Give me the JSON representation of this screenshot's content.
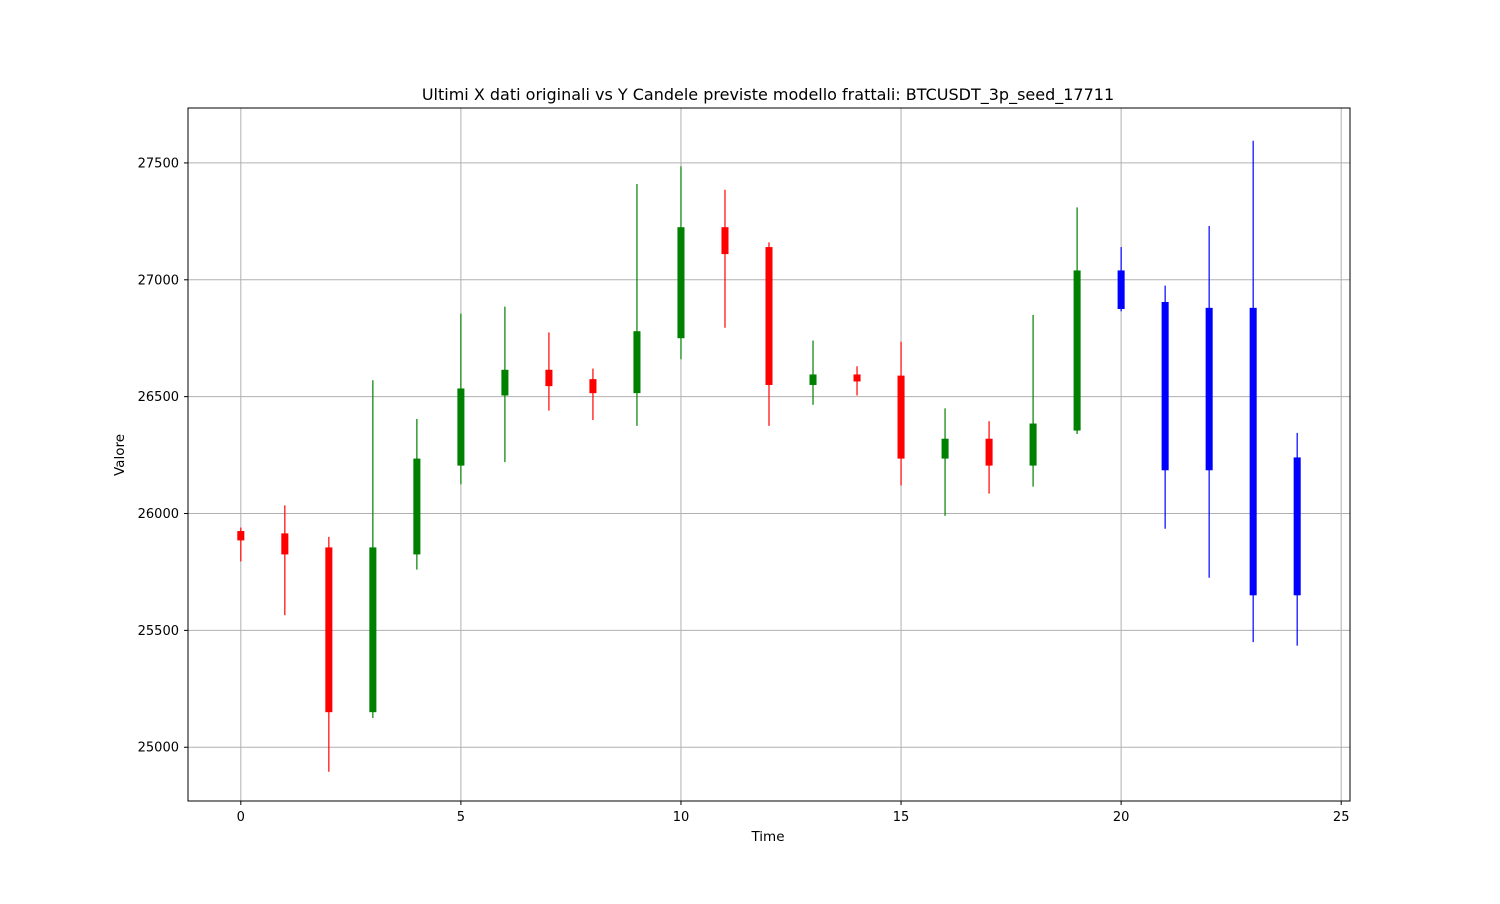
{
  "chart_data": {
    "type": "candlestick",
    "title": "Ultimi X dati originali vs Y Candele previste modello frattali: BTCUSDT_3p_seed_17711",
    "xlabel": "Time",
    "ylabel": "Valore",
    "xlim": [
      -1.2,
      25.2
    ],
    "ylim": [
      24770,
      27735
    ],
    "xticks": [
      0,
      5,
      10,
      15,
      20,
      25
    ],
    "yticks": [
      25000,
      25500,
      26000,
      26500,
      27000,
      27500
    ],
    "grid": true,
    "colors": {
      "up": "#008000",
      "down": "#ff0000",
      "predicted": "#0000ff",
      "grid": "#b0b0b0"
    },
    "candles": [
      {
        "t": 0,
        "open": 25925,
        "high": 25940,
        "low": 25795,
        "close": 25885,
        "kind": "down"
      },
      {
        "t": 1,
        "open": 25915,
        "high": 26035,
        "low": 25565,
        "close": 25825,
        "kind": "down"
      },
      {
        "t": 2,
        "open": 25855,
        "high": 25900,
        "low": 24895,
        "close": 25150,
        "kind": "down"
      },
      {
        "t": 3,
        "open": 25150,
        "high": 26570,
        "low": 25125,
        "close": 25855,
        "kind": "up"
      },
      {
        "t": 4,
        "open": 25825,
        "high": 26405,
        "low": 25760,
        "close": 26235,
        "kind": "up"
      },
      {
        "t": 5,
        "open": 26205,
        "high": 26855,
        "low": 26125,
        "close": 26535,
        "kind": "up"
      },
      {
        "t": 6,
        "open": 26505,
        "high": 26885,
        "low": 26220,
        "close": 26615,
        "kind": "up"
      },
      {
        "t": 7,
        "open": 26615,
        "high": 26775,
        "low": 26440,
        "close": 26545,
        "kind": "down"
      },
      {
        "t": 8,
        "open": 26575,
        "high": 26620,
        "low": 26400,
        "close": 26515,
        "kind": "down"
      },
      {
        "t": 9,
        "open": 26515,
        "high": 27410,
        "low": 26375,
        "close": 26780,
        "kind": "up"
      },
      {
        "t": 10,
        "open": 26750,
        "high": 27485,
        "low": 26660,
        "close": 27225,
        "kind": "up"
      },
      {
        "t": 11,
        "open": 27225,
        "high": 27385,
        "low": 26795,
        "close": 27110,
        "kind": "down"
      },
      {
        "t": 12,
        "open": 27140,
        "high": 27160,
        "low": 26375,
        "close": 26550,
        "kind": "down"
      },
      {
        "t": 13,
        "open": 26550,
        "high": 26740,
        "low": 26465,
        "close": 26595,
        "kind": "up"
      },
      {
        "t": 14,
        "open": 26595,
        "high": 26630,
        "low": 26505,
        "close": 26565,
        "kind": "down"
      },
      {
        "t": 15,
        "open": 26590,
        "high": 26735,
        "low": 26120,
        "close": 26235,
        "kind": "down"
      },
      {
        "t": 16,
        "open": 26235,
        "high": 26450,
        "low": 25990,
        "close": 26320,
        "kind": "up"
      },
      {
        "t": 17,
        "open": 26320,
        "high": 26395,
        "low": 26085,
        "close": 26205,
        "kind": "down"
      },
      {
        "t": 18,
        "open": 26205,
        "high": 26850,
        "low": 26115,
        "close": 26385,
        "kind": "up"
      },
      {
        "t": 19,
        "open": 26355,
        "high": 27310,
        "low": 26340,
        "close": 27040,
        "kind": "up"
      },
      {
        "t": 20,
        "open": 27040,
        "high": 27140,
        "low": 26865,
        "close": 26875,
        "kind": "predicted"
      },
      {
        "t": 21,
        "open": 26905,
        "high": 26975,
        "low": 25935,
        "close": 26185,
        "kind": "predicted"
      },
      {
        "t": 22,
        "open": 26880,
        "high": 27230,
        "low": 25725,
        "close": 26185,
        "kind": "predicted"
      },
      {
        "t": 23,
        "open": 26880,
        "high": 27595,
        "low": 25450,
        "close": 25650,
        "kind": "predicted"
      },
      {
        "t": 24,
        "open": 26240,
        "high": 26345,
        "low": 25435,
        "close": 25650,
        "kind": "predicted"
      }
    ]
  }
}
